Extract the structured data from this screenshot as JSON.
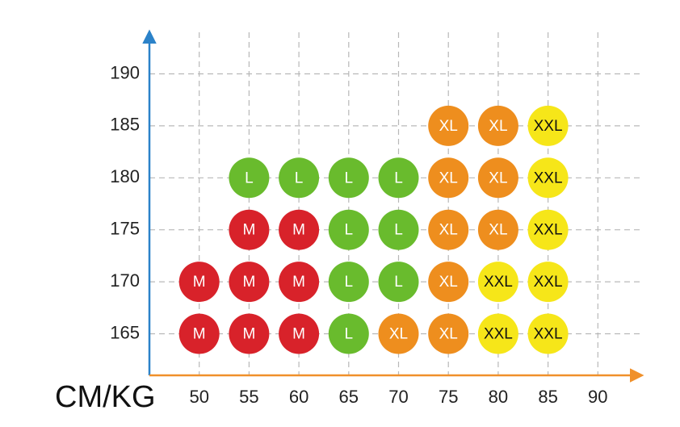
{
  "chart_data": {
    "type": "scatter",
    "x_label": "CM/KG",
    "xlim": [
      45,
      95
    ],
    "ylim": [
      161,
      194
    ],
    "xticks": [
      50,
      55,
      60,
      65,
      70,
      75,
      80,
      85,
      90
    ],
    "yticks": [
      165,
      170,
      175,
      180,
      185,
      190
    ],
    "grid": true,
    "x_axis_color": "#f0902a",
    "y_axis_color": "#2b82c9",
    "series": [
      {
        "name": "M",
        "color": "#d8222a",
        "x": [
          50,
          50,
          55,
          55,
          55,
          60,
          60,
          60
        ],
        "values": [
          170,
          165,
          175,
          170,
          165,
          175,
          170,
          165
        ]
      },
      {
        "name": "L",
        "color": "#69bb2d",
        "x": [
          55,
          60,
          65,
          70,
          65,
          70,
          65,
          70,
          65
        ],
        "values": [
          180,
          180,
          180,
          180,
          175,
          175,
          170,
          170,
          165
        ]
      },
      {
        "name": "XL",
        "color": "#ee8e1e",
        "x": [
          75,
          80,
          75,
          80,
          75,
          80,
          75,
          70,
          75
        ],
        "values": [
          185,
          185,
          180,
          180,
          175,
          175,
          170,
          165,
          165
        ]
      },
      {
        "name": "XXL",
        "color": "#f6e619",
        "x": [
          85,
          85,
          85,
          80,
          85,
          80,
          85
        ],
        "values": [
          185,
          180,
          175,
          170,
          170,
          165,
          165
        ]
      }
    ]
  }
}
